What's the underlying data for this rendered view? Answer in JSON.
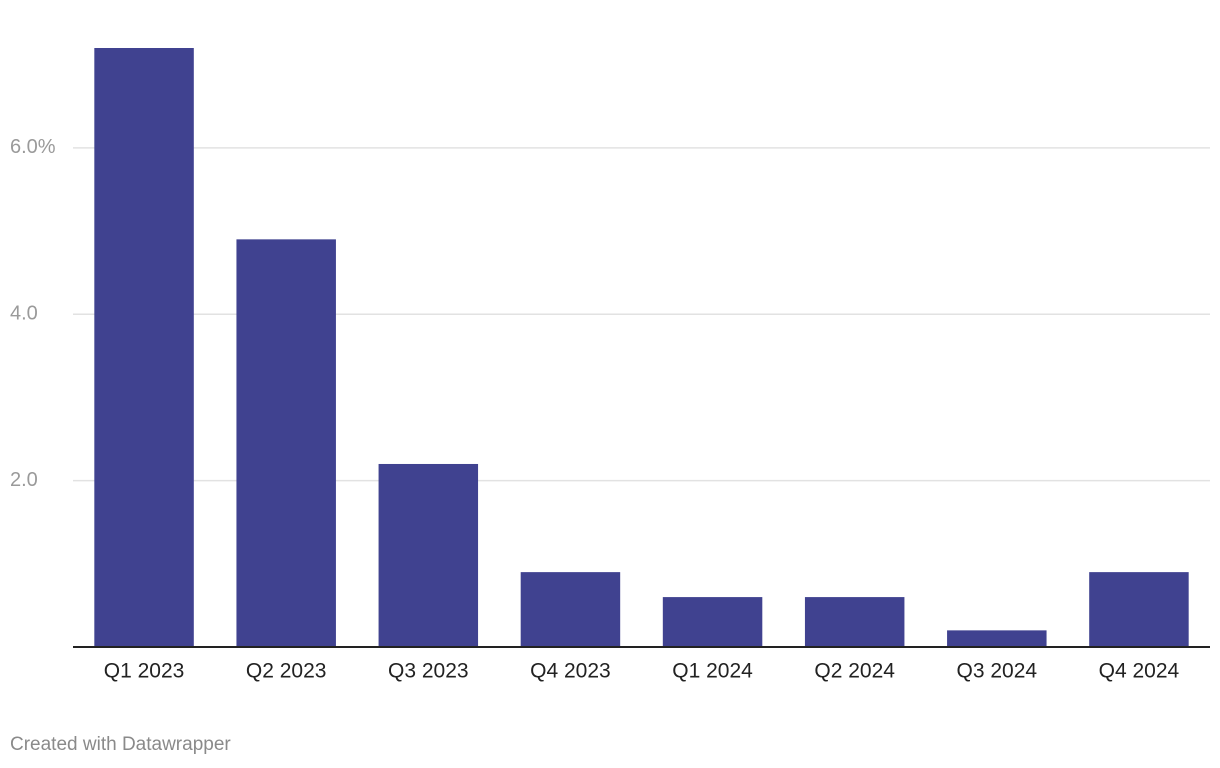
{
  "chart_data": {
    "type": "bar",
    "categories": [
      "Q1 2023",
      "Q2 2023",
      "Q3 2023",
      "Q4 2023",
      "Q1 2024",
      "Q2 2024",
      "Q3 2024",
      "Q4 2024"
    ],
    "values": [
      7.2,
      4.9,
      2.2,
      0.9,
      0.6,
      0.6,
      0.2,
      0.9
    ],
    "color": "#404290",
    "ylim": [
      0,
      7.2
    ],
    "yticks": [
      {
        "value": 2,
        "label": "2.0"
      },
      {
        "value": 4,
        "label": "4.0"
      },
      {
        "value": 6,
        "label": "6.0%"
      }
    ],
    "grid": true,
    "credit": "Created with Datawrapper"
  }
}
